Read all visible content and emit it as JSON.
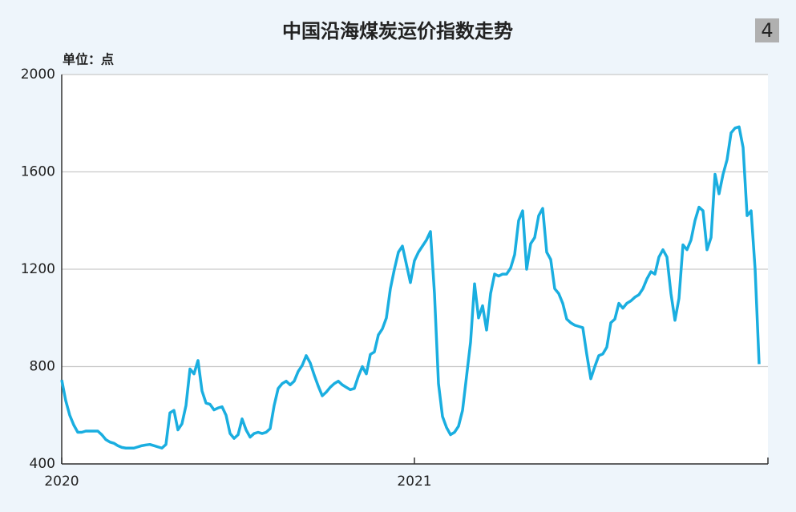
{
  "chart_data": {
    "type": "line",
    "title": "中国沿海煤炭运价指数走势",
    "badge": "4",
    "y_label": "单位：点",
    "categories": [
      "2020",
      null,
      null,
      null,
      null,
      null,
      null,
      null,
      null,
      null,
      null,
      null,
      null,
      null,
      null,
      null,
      null,
      null,
      null,
      null,
      null,
      null,
      null,
      null,
      null,
      null,
      null,
      null,
      null,
      null,
      null,
      null,
      null,
      null,
      null,
      null,
      null,
      null,
      null,
      null,
      null,
      null,
      null,
      null,
      null,
      null,
      null,
      null,
      null,
      null,
      null,
      null,
      null,
      null,
      null,
      null,
      null,
      null,
      null,
      null,
      null,
      null,
      null,
      null,
      null,
      null,
      null,
      null,
      null,
      null,
      null,
      null,
      null,
      null,
      null,
      null,
      null,
      null,
      null,
      null,
      null,
      null,
      null,
      null,
      null,
      null,
      null,
      null,
      "2021",
      null,
      null,
      null,
      null,
      null,
      null,
      null,
      null,
      null,
      null,
      null,
      null,
      null,
      null,
      null,
      null,
      null,
      null,
      null,
      null,
      null,
      null,
      null,
      null,
      null,
      null,
      null,
      null,
      null,
      null,
      null,
      null,
      null,
      null,
      null,
      null,
      null,
      null,
      null,
      null,
      null,
      null,
      null,
      null,
      null,
      null,
      null,
      null,
      null,
      null,
      null,
      null,
      null,
      null,
      null,
      null,
      null,
      null,
      null,
      null,
      null,
      null,
      null,
      null,
      null,
      null,
      null,
      null,
      null,
      null,
      null,
      null,
      null,
      null,
      null,
      null,
      null,
      null,
      null,
      null,
      null,
      null,
      null,
      null,
      null,
      null
    ],
    "series": [
      {
        "name": "中国沿海煤炭运价指数",
        "color": "#1aaee0",
        "values": [
          745,
          660,
          600,
          560,
          530,
          530,
          535,
          535,
          535,
          535,
          520,
          500,
          490,
          485,
          475,
          468,
          465,
          465,
          465,
          470,
          475,
          478,
          480,
          475,
          470,
          465,
          480,
          610,
          620,
          540,
          565,
          640,
          790,
          770,
          825,
          700,
          650,
          645,
          622,
          630,
          635,
          600,
          525,
          505,
          520,
          585,
          540,
          510,
          525,
          530,
          525,
          530,
          545,
          640,
          710,
          730,
          740,
          725,
          740,
          780,
          805,
          845,
          815,
          765,
          720,
          680,
          695,
          715,
          730,
          740,
          725,
          715,
          705,
          710,
          760,
          800,
          770,
          850,
          860,
          930,
          955,
          1000,
          1120,
          1200,
          1270,
          1295,
          1220,
          1145,
          1235,
          1270,
          1295,
          1320,
          1355,
          1100,
          730,
          595,
          550,
          520,
          530,
          555,
          620,
          760,
          900,
          1140,
          1000,
          1050,
          950,
          1100,
          1180,
          1172,
          1180,
          1180,
          1205,
          1260,
          1400,
          1440,
          1200,
          1305,
          1330,
          1420,
          1450,
          1270,
          1240,
          1120,
          1100,
          1060,
          995,
          980,
          970,
          965,
          960,
          850,
          750,
          800,
          845,
          852,
          880,
          980,
          995,
          1060,
          1040,
          1060,
          1070,
          1085,
          1095,
          1120,
          1160,
          1190,
          1180,
          1250,
          1280,
          1250,
          1100,
          990,
          1080,
          1300,
          1280,
          1320,
          1400,
          1455,
          1440,
          1280,
          1330,
          1590,
          1510,
          1590,
          1650,
          1760,
          1780,
          1785,
          1700,
          1420,
          1440,
          1200,
          810
        ]
      }
    ],
    "ylim": [
      400,
      2000
    ],
    "yticks": [
      400,
      800,
      1200,
      1600,
      2000
    ],
    "grid": true
  }
}
